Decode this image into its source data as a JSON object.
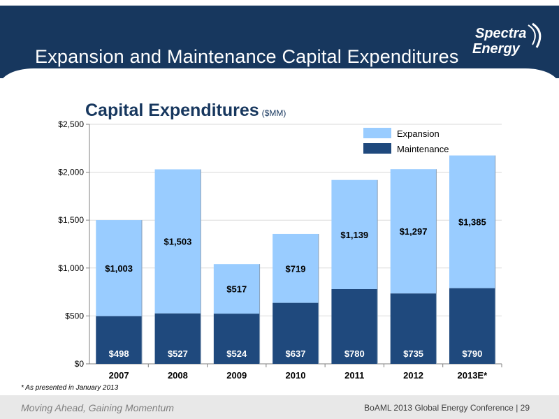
{
  "page": {
    "title": "Expansion and Maintenance Capital Expenditures",
    "logo_line1": "Spectra",
    "logo_line2": "Energy",
    "footnote": "* As presented in January 2013",
    "footer_left": "Moving Ahead, Gaining Momentum",
    "footer_right": "BoAML 2013 Global Energy Conference | 29"
  },
  "colors": {
    "header": "#17375e",
    "expansion": "#99ccff",
    "maintenance": "#1f497d",
    "gridline": "#d9d9d9",
    "axis": "#7f7f7f",
    "expansion_label": "#000000",
    "maintenance_label": "#ffffff"
  },
  "chart_data": {
    "type": "bar",
    "stacked": true,
    "title": "Capital Expenditures",
    "title_unit": "($MM)",
    "categories": [
      "2007",
      "2008",
      "2009",
      "2010",
      "2011",
      "2012",
      "2013E*"
    ],
    "series": [
      {
        "name": "Maintenance",
        "values": [
          498,
          527,
          524,
          637,
          780,
          735,
          790
        ],
        "labels": [
          "$498",
          "$527",
          "$524",
          "$637",
          "$780",
          "$735",
          "$790"
        ]
      },
      {
        "name": "Expansion",
        "values": [
          1003,
          1503,
          517,
          719,
          1139,
          1297,
          1385
        ],
        "labels": [
          "$1,003",
          "$1,503",
          "$517",
          "$719",
          "$1,139",
          "$1,297",
          "$1,385"
        ]
      }
    ],
    "yticks": [
      0,
      500,
      1000,
      1500,
      2000,
      2500
    ],
    "ytick_labels": [
      "$0",
      "$500",
      "$1,000",
      "$1,500",
      "$2,000",
      "$2,500"
    ],
    "ylim": [
      0,
      2500
    ],
    "grid": true,
    "legend": {
      "position": "top-right",
      "entries": [
        "Expansion",
        "Maintenance"
      ]
    }
  }
}
